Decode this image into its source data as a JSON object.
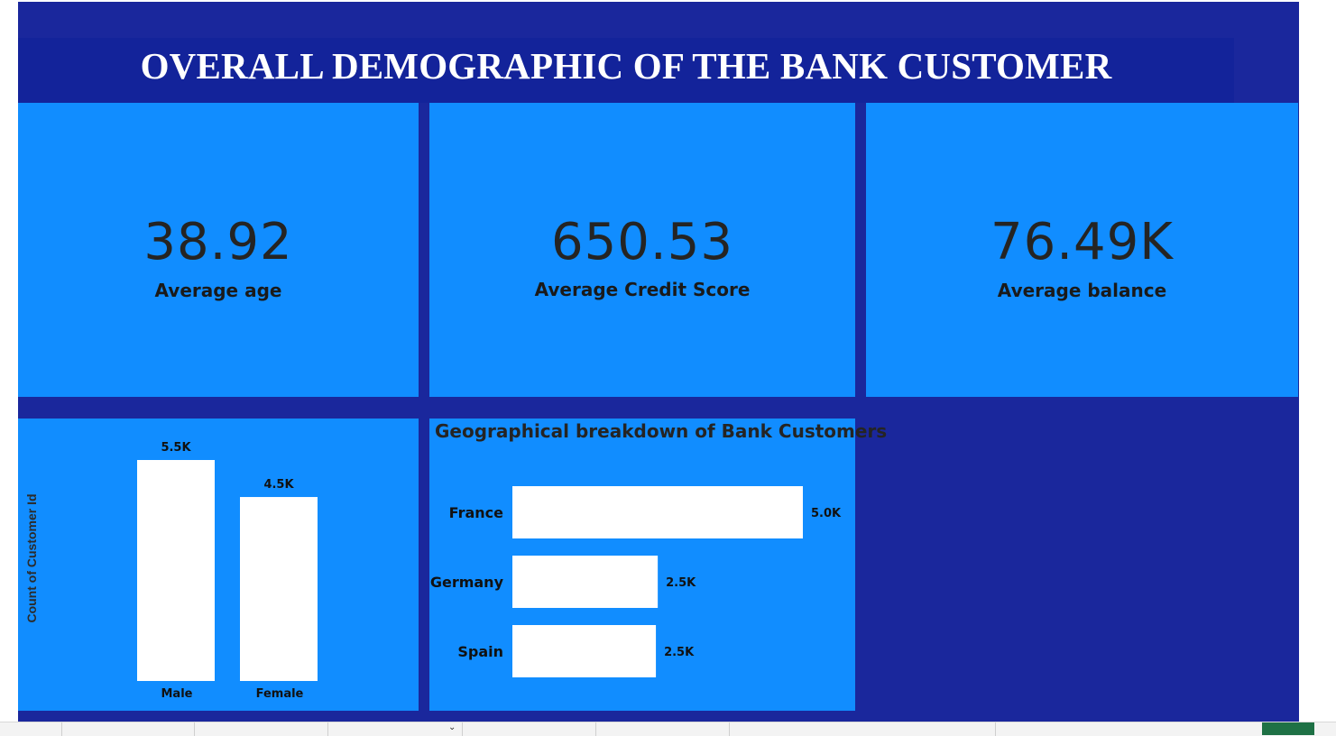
{
  "title": "OVERALL DEMOGRAPHIC OF THE BANK CUSTOMER",
  "kpis": [
    {
      "value": "38.92",
      "label": "Average age"
    },
    {
      "value": "650.53",
      "label": "Average Credit Score"
    },
    {
      "value": "76.49K",
      "label": "Average balance"
    }
  ],
  "colors": {
    "background": "#1a279c",
    "tile": "#118dff",
    "bar": "#ffffff",
    "title_bar": "#13239a"
  },
  "chart_data": [
    {
      "type": "bar",
      "orientation": "vertical",
      "categories": [
        "Male",
        "Female"
      ],
      "values": [
        5457,
        4543
      ],
      "data_labels": [
        "5.5K",
        "4.5K"
      ],
      "title": "",
      "xlabel": "",
      "ylabel": "Count of Customer Id",
      "ylim": [
        0,
        5457
      ],
      "grid": false
    },
    {
      "type": "bar",
      "orientation": "horizontal",
      "categories": [
        "France",
        "Germany",
        "Spain"
      ],
      "values": [
        5014,
        2509,
        2477
      ],
      "data_labels": [
        "5.0K",
        "2.5K",
        "2.5K"
      ],
      "title": "Geographical breakdown of Bank Customers",
      "xlabel": "",
      "ylabel": "",
      "xlim": [
        0,
        5014
      ],
      "grid": false
    }
  ]
}
